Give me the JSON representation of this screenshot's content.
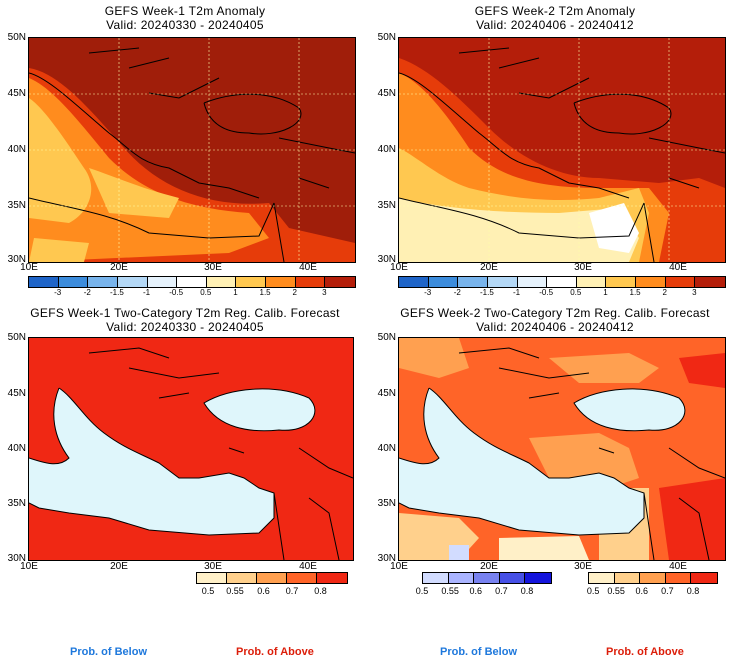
{
  "panels": [
    {
      "title": "GEFS Week-1 T2m Anomaly",
      "valid": "Valid: 20240330 - 20240405"
    },
    {
      "title": "GEFS Week-2 T2m Anomaly",
      "valid": "Valid: 20240406 - 20240412"
    },
    {
      "title": "GEFS Week-1 Two-Category T2m Reg. Calib. Forecast",
      "valid": "Valid: 20240330 - 20240405"
    },
    {
      "title": "GEFS Week-2 Two-Category T2m Reg. Calib. Forecast",
      "valid": "Valid: 20240406 - 20240412"
    }
  ],
  "lat_labels": [
    "50N",
    "45N",
    "40N",
    "35N",
    "30N"
  ],
  "lon_labels": [
    "10E",
    "20E",
    "30E",
    "40E"
  ],
  "anomaly_colorbar": {
    "ticks": [
      "-3",
      "-2",
      "-1.5",
      "-1",
      "-0.5",
      "0.5",
      "1",
      "1.5",
      "2",
      "3"
    ],
    "colors": [
      "#1e64c8",
      "#3c8cdc",
      "#78b4ec",
      "#b4d8f6",
      "#e6f2fc",
      "#ffffff",
      "#fff0b4",
      "#ffc850",
      "#ff8c1e",
      "#e63c0a",
      "#b41e0a"
    ]
  },
  "prob_colorbar": {
    "ticks": [
      "0.5",
      "0.55",
      "0.6",
      "0.7",
      "0.8"
    ],
    "above_colors": [
      "#fff0c8",
      "#ffd08c",
      "#ffa050",
      "#ff6428",
      "#f02814"
    ],
    "below_colors": [
      "#d2dcff",
      "#aab4ff",
      "#7882f0",
      "#4650e6",
      "#1414dc"
    ]
  },
  "legend": {
    "below": "Prob. of Below",
    "above": "Prob. of Above",
    "below_color": "#1e78dc",
    "above_color": "#dc1e0a"
  }
}
